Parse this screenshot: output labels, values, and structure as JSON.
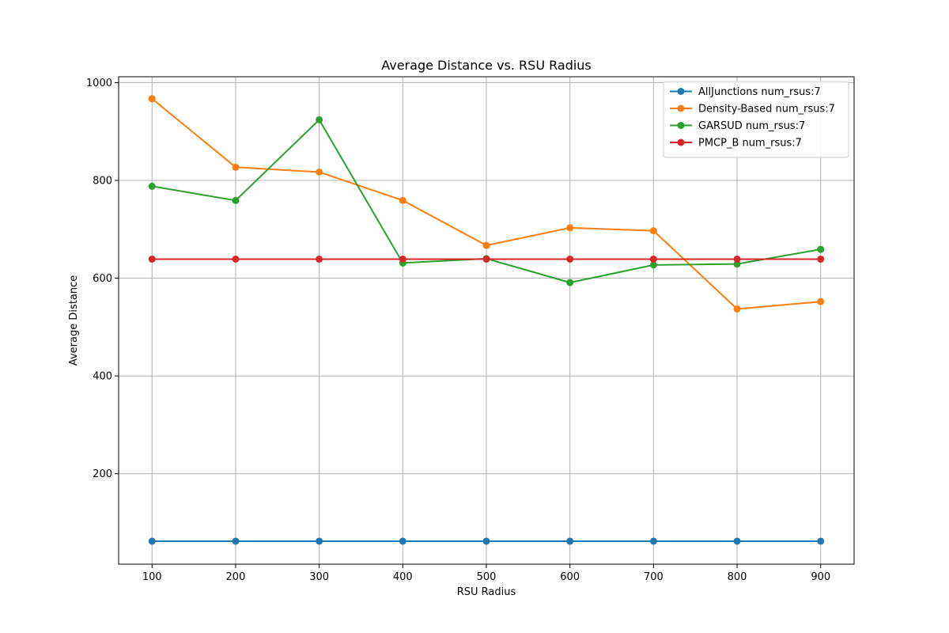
{
  "chart_data": {
    "type": "line",
    "title": "Average Distance vs. RSU Radius",
    "xlabel": "RSU Radius",
    "ylabel": "Average Distance",
    "x": [
      100,
      200,
      300,
      400,
      500,
      600,
      700,
      800,
      900
    ],
    "xticks": [
      100,
      200,
      300,
      400,
      500,
      600,
      700,
      800,
      900
    ],
    "yticks": [
      200,
      400,
      600,
      800,
      1000
    ],
    "xlim": [
      60,
      940
    ],
    "ylim": [
      15,
      1012
    ],
    "grid": true,
    "legend_position": "top-right",
    "series": [
      {
        "name": "AllJunctions num_rsus:7",
        "color": "#1f77b4",
        "values": [
          62,
          62,
          62,
          62,
          62,
          62,
          62,
          62,
          62
        ]
      },
      {
        "name": "Density-Based num_rsus:7",
        "color": "#ff7f0e",
        "values": [
          967,
          827,
          817,
          759,
          667,
          703,
          697,
          537,
          552
        ]
      },
      {
        "name": "GARSUD num_rsus:7",
        "color": "#2ca02c",
        "values": [
          788,
          759,
          924,
          631,
          640,
          591,
          627,
          629,
          659
        ]
      },
      {
        "name": "PMCP_B num_rsus:7",
        "color": "#d62728",
        "values": [
          639,
          639,
          639,
          639,
          639,
          639,
          639,
          639,
          639
        ]
      }
    ]
  }
}
